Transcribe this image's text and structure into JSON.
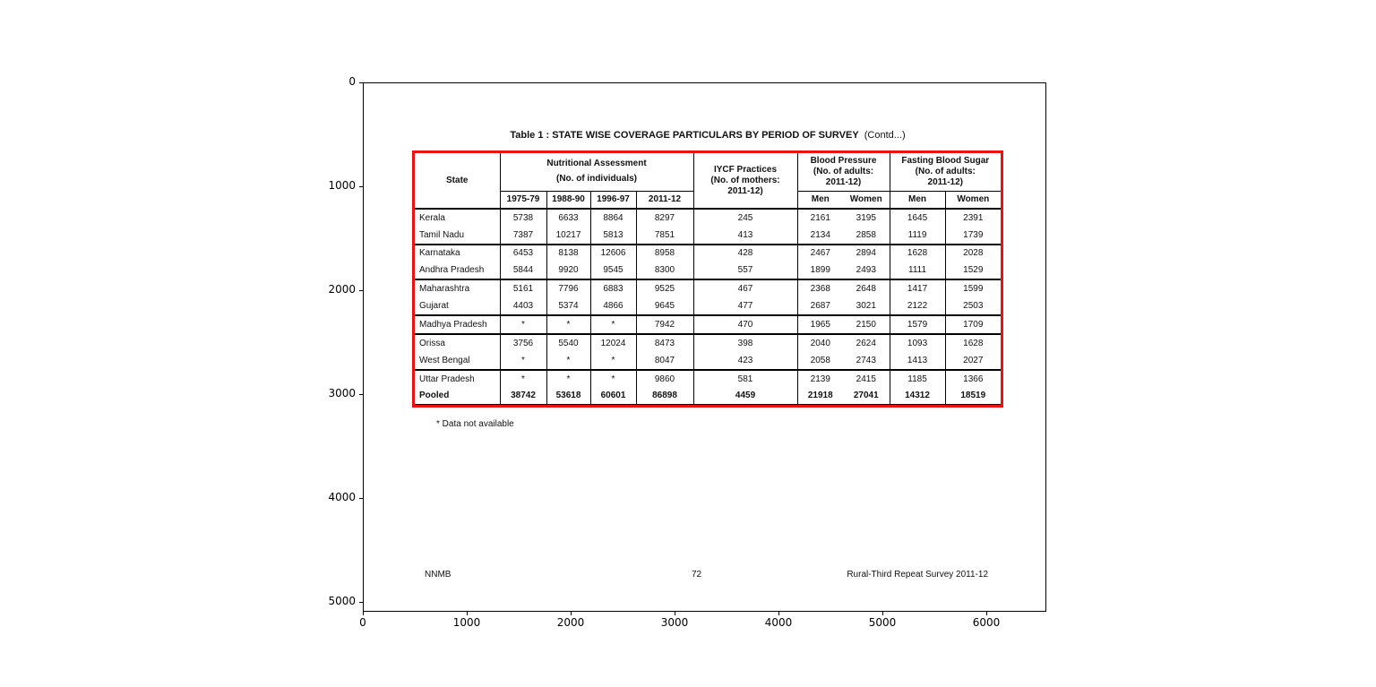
{
  "chart_data": {
    "type": "table",
    "accent_color": "#ee1111",
    "x_ticks": [
      "0",
      "1000",
      "2000",
      "3000",
      "4000",
      "5000",
      "6000"
    ],
    "y_ticks": [
      "0",
      "1000",
      "2000",
      "3000",
      "4000",
      "5000"
    ],
    "x_range": [
      0,
      6580
    ],
    "y_range": [
      0,
      5095
    ],
    "y_inverted": true,
    "grid": false,
    "title": "Table 1 : STATE WISE COVERAGE PARTICULARS BY PERIOD OF SURVEY",
    "title_suffix": "(Contd...)",
    "header": {
      "state": "State",
      "nutritional": {
        "line1": "Nutritional Assessment",
        "line2": "(No. of individuals)"
      },
      "years": [
        "1975-79",
        "1988-90",
        "1996-97",
        "2011-12"
      ],
      "iycf": {
        "line1": "IYCF Practices",
        "line2": "(No. of mothers:",
        "line3": "2011-12)"
      },
      "bp": {
        "line1": "Blood Pressure",
        "line2": "(No. of adults:",
        "line3": "2011-12)",
        "men": "Men",
        "women": "Women"
      },
      "fbs": {
        "line1": "Fasting Blood Sugar",
        "line2": "(No. of adults:",
        "line3": "2011-12)",
        "men": "Men",
        "women": "Women"
      }
    },
    "groups": [
      [
        [
          "Kerala",
          "5738",
          "6633",
          "8864",
          "8297",
          "245",
          "2161",
          "3195",
          "1645",
          "2391"
        ],
        [
          "Tamil Nadu",
          "7387",
          "10217",
          "5813",
          "7851",
          "413",
          "2134",
          "2858",
          "1119",
          "1739"
        ]
      ],
      [
        [
          "Karnataka",
          "6453",
          "8138",
          "12606",
          "8958",
          "428",
          "2467",
          "2894",
          "1628",
          "2028"
        ],
        [
          "Andhra Pradesh",
          "5844",
          "9920",
          "9545",
          "8300",
          "557",
          "1899",
          "2493",
          "1111",
          "1529"
        ]
      ],
      [
        [
          "Maharashtra",
          "5161",
          "7796",
          "6883",
          "9525",
          "467",
          "2368",
          "2648",
          "1417",
          "1599"
        ],
        [
          "Gujarat",
          "4403",
          "5374",
          "4866",
          "9645",
          "477",
          "2687",
          "3021",
          "2122",
          "2503"
        ]
      ],
      [
        [
          "Madhya Pradesh",
          "*",
          "*",
          "*",
          "7942",
          "470",
          "1965",
          "2150",
          "1579",
          "1709"
        ]
      ],
      [
        [
          "Orissa",
          "3756",
          "5540",
          "12024",
          "8473",
          "398",
          "2040",
          "2624",
          "1093",
          "1628"
        ],
        [
          "West Bengal",
          "*",
          "*",
          "*",
          "8047",
          "423",
          "2058",
          "2743",
          "1413",
          "2027"
        ]
      ],
      [
        [
          "Uttar Pradesh",
          "*",
          "*",
          "*",
          "9860",
          "581",
          "2139",
          "2415",
          "1185",
          "1366"
        ],
        [
          "Pooled",
          "38742",
          "53618",
          "60601",
          "86898",
          "4459",
          "21918",
          "27041",
          "14312",
          "18519"
        ]
      ]
    ],
    "bold_row_label": "Pooled",
    "footnote": "* Data not available",
    "footer": {
      "left": "NNMB",
      "center": "72",
      "right": "Rural-Third Repeat Survey 2011-12"
    }
  }
}
